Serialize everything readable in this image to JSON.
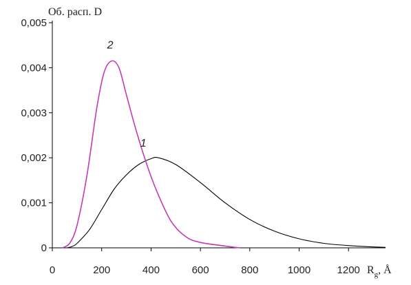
{
  "chart_data": {
    "type": "line",
    "ylabel": "Об. расп. D",
    "xlabel_main": "R",
    "xlabel_sub": "g",
    "xlabel_unit": ", Å",
    "xlim": [
      0,
      1350
    ],
    "ylim": [
      0,
      0.005
    ],
    "xticks": [
      {
        "value": 0,
        "label": "0"
      },
      {
        "value": 200,
        "label": "200"
      },
      {
        "value": 400,
        "label": "400"
      },
      {
        "value": 600,
        "label": "600"
      },
      {
        "value": 800,
        "label": "800"
      },
      {
        "value": 1000,
        "label": "1000"
      },
      {
        "value": 1200,
        "label": "1200"
      }
    ],
    "yticks": [
      {
        "value": 0,
        "label": "0"
      },
      {
        "value": 0.001,
        "label": "0,001"
      },
      {
        "value": 0.002,
        "label": "0,002"
      },
      {
        "value": 0.003,
        "label": "0,003"
      },
      {
        "value": 0.004,
        "label": "0,004"
      },
      {
        "value": 0.005,
        "label": "0,005"
      }
    ],
    "grid": false,
    "series": [
      {
        "label": "1",
        "color": "#000000",
        "points": [
          [
            60,
            0.0
          ],
          [
            80,
            3e-05
          ],
          [
            100,
            0.0001
          ],
          [
            150,
            0.0004
          ],
          [
            200,
            0.00085
          ],
          [
            250,
            0.0013
          ],
          [
            300,
            0.00162
          ],
          [
            350,
            0.00185
          ],
          [
            400,
            0.00198
          ],
          [
            430,
            0.002
          ],
          [
            500,
            0.00185
          ],
          [
            600,
            0.00145
          ],
          [
            700,
            0.001
          ],
          [
            800,
            0.00063
          ],
          [
            900,
            0.00037
          ],
          [
            1000,
            0.0002
          ],
          [
            1100,
            0.0001
          ],
          [
            1200,
            5e-05
          ],
          [
            1300,
            2e-05
          ],
          [
            1350,
            1e-05
          ]
        ]
      },
      {
        "label": "2",
        "color": "#c23bb5",
        "points": [
          [
            40,
            0.0
          ],
          [
            70,
            0.0001
          ],
          [
            100,
            0.0005
          ],
          [
            140,
            0.0016
          ],
          [
            180,
            0.0031
          ],
          [
            210,
            0.0039
          ],
          [
            240,
            0.00415
          ],
          [
            270,
            0.004
          ],
          [
            300,
            0.0034
          ],
          [
            340,
            0.0026
          ],
          [
            380,
            0.0019
          ],
          [
            420,
            0.0013
          ],
          [
            480,
            0.0006
          ],
          [
            540,
            0.00025
          ],
          [
            600,
            0.00012
          ],
          [
            700,
            4e-05
          ],
          [
            760,
            0.0
          ]
        ]
      }
    ]
  }
}
